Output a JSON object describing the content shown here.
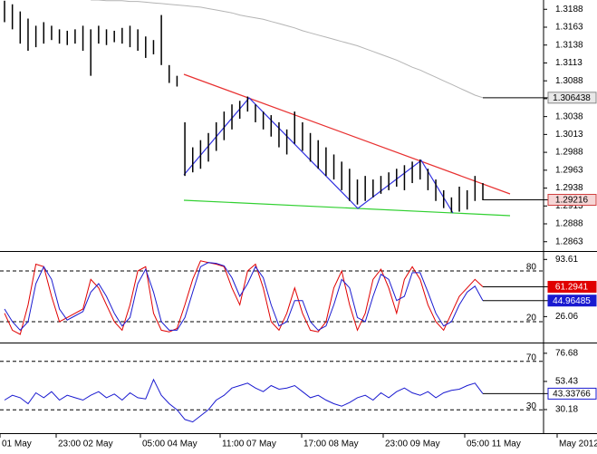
{
  "chart_data": [
    {
      "type": "hlbar",
      "color": "#000000",
      "ylim": [
        1.285,
        1.3201
      ],
      "yticks": [
        1.2863,
        1.2888,
        1.2913,
        1.2938,
        1.2963,
        1.2988,
        1.3013,
        1.3038,
        1.3063,
        1.3088,
        1.3113,
        1.3138,
        1.3163,
        1.3188
      ],
      "high": [
        1.32,
        1.3195,
        1.3185,
        1.3175,
        1.3165,
        1.317,
        1.3165,
        1.316,
        1.3158,
        1.316,
        1.3165,
        1.316,
        1.3165,
        1.316,
        1.3158,
        1.3162,
        1.3165,
        1.316,
        1.315,
        1.3145,
        1.318,
        1.311,
        1.3095,
        1.303,
        1.2995,
        1.3005,
        1.3015,
        1.303,
        1.3045,
        1.3055,
        1.306,
        1.3066,
        1.3055,
        1.3045,
        1.304,
        1.303,
        1.302,
        1.3045,
        1.303,
        1.3015,
        1.3005,
        1.2995,
        1.2985,
        1.2975,
        1.2965,
        1.295,
        1.2955,
        1.295,
        1.2955,
        1.296,
        1.2965,
        1.297,
        1.2975,
        1.2978,
        1.2965,
        1.295,
        1.2935,
        1.2925,
        1.294,
        1.2935,
        1.2955,
        1.2945
      ],
      "low": [
        1.317,
        1.316,
        1.314,
        1.313,
        1.3135,
        1.314,
        1.3145,
        1.314,
        1.3138,
        1.314,
        1.313,
        1.3095,
        1.314,
        1.3138,
        1.3142,
        1.314,
        1.3135,
        1.313,
        1.312,
        1.3125,
        1.311,
        1.3085,
        1.308,
        1.2955,
        1.296,
        1.2965,
        1.2975,
        1.299,
        1.3005,
        1.302,
        1.3035,
        1.3045,
        1.303,
        1.302,
        1.301,
        1.2995,
        1.2985,
        1.3,
        1.299,
        1.2975,
        1.2965,
        1.2955,
        1.295,
        1.2935,
        1.292,
        1.2915,
        1.292,
        1.2925,
        1.293,
        1.2935,
        1.294,
        1.2935,
        1.2945,
        1.295,
        1.2935,
        1.292,
        1.291,
        1.2904,
        1.2905,
        1.2908,
        1.292,
        1.2921
      ],
      "last_price": 1.29216,
      "series": [
        {
          "color": "#b4b4b4",
          "values": [
            null,
            null,
            null,
            null,
            null,
            null,
            null,
            null,
            null,
            null,
            null,
            1.3201,
            1.3201,
            1.32,
            1.32,
            1.32,
            1.3199,
            1.3199,
            1.3198,
            1.3197,
            1.3196,
            1.3195,
            1.3194,
            1.3193,
            1.3192,
            1.3191,
            1.3189,
            1.3187,
            1.3185,
            1.3183,
            1.318,
            1.3178,
            1.3176,
            1.3174,
            1.3171,
            1.3168,
            1.3165,
            1.3162,
            1.3158,
            1.3155,
            1.3152,
            1.3149,
            1.3146,
            1.3143,
            1.314,
            1.3137,
            1.3133,
            1.3129,
            1.3125,
            1.3121,
            1.3117,
            1.3112,
            1.3107,
            1.3103,
            1.3098,
            1.3093,
            1.3088,
            1.3083,
            1.3078,
            1.3073,
            1.3068,
            1.306438
          ]
        }
      ],
      "x_labels": [
        "01 May",
        "23:00 02 May",
        "05:00 04 May",
        "11:00 07 May",
        "17:00 08 May",
        "23:00 09 May",
        "05:00 11 May",
        "May 2012"
      ]
    },
    {
      "type": "line",
      "ylim": [
        -4.6,
        102.5
      ],
      "levels": [
        20,
        80
      ],
      "yticks": [
        26.06,
        93.61
      ],
      "series": [
        {
          "color": "#e00000",
          "values": [
            30,
            10,
            5,
            40,
            88,
            85,
            50,
            20,
            25,
            30,
            35,
            70,
            60,
            40,
            20,
            10,
            40,
            80,
            85,
            30,
            10,
            8,
            12,
            40,
            70,
            92,
            90,
            88,
            85,
            60,
            40,
            80,
            88,
            60,
            20,
            10,
            30,
            60,
            30,
            10,
            8,
            20,
            60,
            80,
            40,
            10,
            30,
            70,
            82,
            60,
            30,
            70,
            85,
            70,
            40,
            20,
            10,
            30,
            50,
            60,
            70,
            61.2941
          ]
        },
        {
          "color": "#1a1ad0",
          "values": [
            35,
            20,
            10,
            20,
            65,
            85,
            70,
            35,
            22,
            27,
            32,
            55,
            65,
            50,
            30,
            15,
            25,
            65,
            82,
            55,
            20,
            10,
            10,
            25,
            55,
            85,
            90,
            89,
            86,
            72,
            50,
            65,
            85,
            72,
            40,
            15,
            20,
            45,
            45,
            20,
            10,
            15,
            40,
            70,
            60,
            25,
            20,
            50,
            76,
            70,
            45,
            50,
            78,
            78,
            55,
            30,
            15,
            20,
            40,
            55,
            62,
            44.96485
          ]
        }
      ]
    },
    {
      "type": "line",
      "ylim": [
        10.7,
        84.8
      ],
      "levels": [
        30,
        70
      ],
      "yticks": [
        30.18,
        53.43,
        76.68
      ],
      "series": [
        {
          "color": "#1a1ad0",
          "values": [
            38,
            42,
            40,
            35,
            44,
            40,
            45,
            38,
            42,
            40,
            38,
            42,
            45,
            40,
            43,
            38,
            44,
            40,
            39,
            55,
            42,
            35,
            30,
            22,
            20,
            25,
            30,
            38,
            42,
            48,
            50,
            52,
            48,
            45,
            50,
            47,
            48,
            50,
            45,
            40,
            42,
            38,
            35,
            33,
            36,
            40,
            42,
            38,
            44,
            40,
            45,
            48,
            44,
            42,
            45,
            40,
            44,
            46,
            47,
            50,
            52,
            43.33766
          ]
        }
      ]
    }
  ]
}
